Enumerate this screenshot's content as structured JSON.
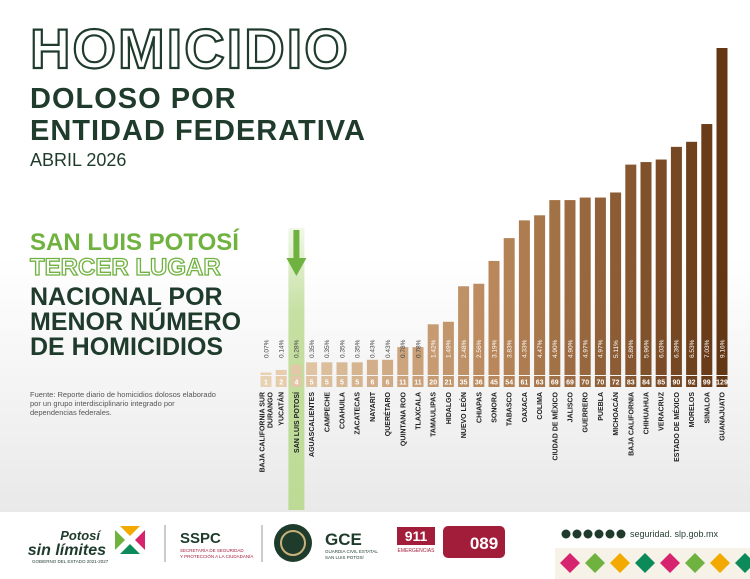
{
  "chart_data": {
    "type": "bar",
    "title": "HOMICIDIO",
    "subtitle": [
      "DOLOSO POR",
      "ENTIDAD FEDERATIVA"
    ],
    "date": "ABRIL 2026",
    "highlight": {
      "title": "SAN LUIS POTOSÍ",
      "rank": "TERCER LUGAR",
      "text": [
        "NACIONAL POR",
        "MENOR NÚMERO",
        "DE HOMICIDIOS"
      ]
    },
    "highlight_index": 2,
    "source": [
      "Fuente: Reporte diario de homicidios dolosos elaborado",
      "por un grupo interdisciplinario integrado por",
      "dependencias federales."
    ],
    "categories": [
      [
        "BAJA CALIFORNIA SUR",
        "DURANGO"
      ],
      [
        "YUCATÁN"
      ],
      [
        "SAN LUIS POTOSÍ"
      ],
      [
        "AGUASCALIENTES"
      ],
      [
        "CAMPECHE"
      ],
      [
        "COAHUILA"
      ],
      [
        "ZACATECAS"
      ],
      [
        "NAYARIT"
      ],
      [
        "QUERÉTARO"
      ],
      [
        "QUINTANA ROO"
      ],
      [
        "TLAXCALA"
      ],
      [
        "TAMAULIPAS"
      ],
      [
        "HIDALGO"
      ],
      [
        "NUEVO LEÓN"
      ],
      [
        "CHIAPAS"
      ],
      [
        "SONORA"
      ],
      [
        "TABASCO"
      ],
      [
        "OAXACA"
      ],
      [
        "COLIMA"
      ],
      [
        "CIUDAD DE MÉXICO"
      ],
      [
        "JALISCO"
      ],
      [
        "GUERRERO"
      ],
      [
        "PUEBLA"
      ],
      [
        "MICHOACÁN"
      ],
      [
        "BAJA CALIFORNIA"
      ],
      [
        "CHIHUAHUA"
      ],
      [
        "VERACRUZ"
      ],
      [
        "ESTADO DE MÉXICO"
      ],
      [
        "MORELOS"
      ],
      [
        "SINALOA"
      ],
      [
        "GUANAJUATO"
      ]
    ],
    "values": [
      1,
      2,
      4,
      5,
      5,
      5,
      5,
      6,
      6,
      11,
      11,
      20,
      21,
      35,
      36,
      45,
      54,
      61,
      63,
      69,
      69,
      70,
      70,
      72,
      83,
      84,
      85,
      90,
      92,
      99,
      129
    ],
    "percentages": [
      0.07,
      0.14,
      0.28,
      0.35,
      0.35,
      0.35,
      0.35,
      0.43,
      0.43,
      0.78,
      0.78,
      1.42,
      1.49,
      2.48,
      2.56,
      3.19,
      3.83,
      4.33,
      4.47,
      4.9,
      4.9,
      4.97,
      4.97,
      5.11,
      5.89,
      5.96,
      6.03,
      6.39,
      6.53,
      7.03,
      9.16
    ],
    "percentage_labels": [
      "0.07%",
      "0.14%",
      "0.28%",
      "0.35%",
      "0.35%",
      "0.35%",
      "0.35%",
      "0.43%",
      "0.43%",
      "0.78%",
      "0.78%",
      "1.42%",
      "1.49%",
      "2.48%",
      "2.56%",
      "3.19%",
      "3.83%",
      "4.33%",
      "4.47%",
      "4.90%",
      "4.90%",
      "4.97%",
      "4.97%",
      "5.11%",
      "5.89%",
      "5.96%",
      "6.03%",
      "6.39%",
      "6.53%",
      "7.03%",
      "9.16%"
    ],
    "color": "#b9875a"
  },
  "footer": {
    "brand": [
      "Potosí",
      "sin límites"
    ],
    "brand_sub": "GOBIERNO DEL ESTADO 2021-2027",
    "sspc": "SSPC",
    "sspc_sub": [
      "SECRETARÍA DE SEGURIDAD",
      "Y PROTECCIÓN A LA CIUDADANÍA"
    ],
    "gce": "GCE",
    "gce_sub": [
      "GUARDIA CIVIL ESTATAL",
      "SAN LUIS POTOSÍ"
    ],
    "emergency": "911",
    "emergency_sub": "EMERGENCIAS",
    "anonymous": "089",
    "website": "seguridad. slp.gob.mx"
  }
}
